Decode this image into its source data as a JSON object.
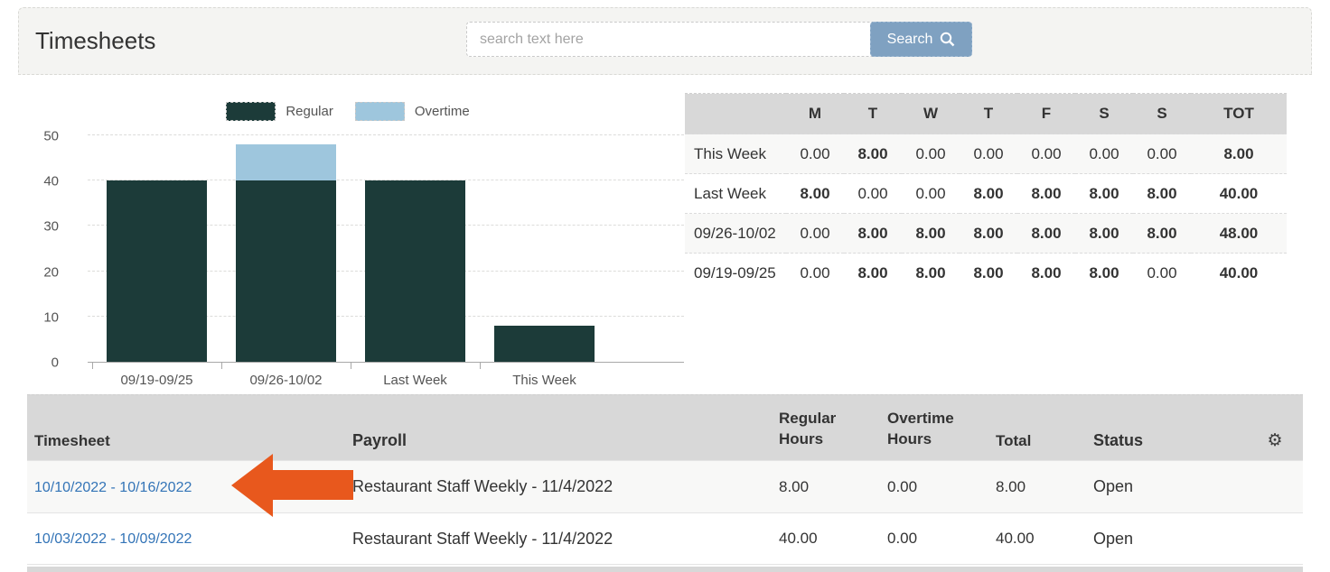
{
  "header": {
    "title": "Timesheets",
    "search": {
      "placeholder": "search text here",
      "button_label": "Search"
    }
  },
  "chart_data": {
    "type": "bar",
    "stacked": true,
    "categories": [
      "09/19-09/25",
      "09/26-10/02",
      "Last Week",
      "This Week"
    ],
    "series": [
      {
        "name": "Regular",
        "color": "#1c3b39",
        "values": [
          40,
          40,
          40,
          8
        ]
      },
      {
        "name": "Overtime",
        "color": "#9ec6dd",
        "values": [
          0,
          8,
          0,
          0
        ]
      }
    ],
    "ylim": [
      0,
      50
    ],
    "yticks": [
      0,
      10,
      20,
      30,
      40,
      50
    ],
    "legend_position": "top",
    "grid": true
  },
  "week_table": {
    "columns": [
      "",
      "M",
      "T",
      "W",
      "T",
      "F",
      "S",
      "S",
      "TOT"
    ],
    "rows": [
      {
        "label": "This Week",
        "values": [
          "0.00",
          "8.00",
          "0.00",
          "0.00",
          "0.00",
          "0.00",
          "0.00"
        ],
        "total": "8.00"
      },
      {
        "label": "Last Week",
        "values": [
          "8.00",
          "0.00",
          "0.00",
          "8.00",
          "8.00",
          "8.00",
          "8.00"
        ],
        "total": "40.00"
      },
      {
        "label": "09/26-10/02",
        "values": [
          "0.00",
          "8.00",
          "8.00",
          "8.00",
          "8.00",
          "8.00",
          "8.00"
        ],
        "total": "48.00"
      },
      {
        "label": "09/19-09/25",
        "values": [
          "0.00",
          "8.00",
          "8.00",
          "8.00",
          "8.00",
          "8.00",
          "0.00"
        ],
        "total": "40.00"
      }
    ]
  },
  "timesheet_table": {
    "col_timesheet": "Timesheet",
    "col_payroll": "Payroll",
    "col_regular": "Regular Hours",
    "col_overtime": "Overtime Hours",
    "col_total": "Total",
    "col_status": "Status",
    "gear_icon": "⚙",
    "rows": [
      {
        "timesheet": "10/10/2022 - 10/16/2022",
        "payroll": "Restaurant Staff Weekly - 11/4/2022",
        "regular_hours": "8.00",
        "overtime_hours": "0.00",
        "total": "8.00",
        "status": "Open"
      },
      {
        "timesheet": "10/03/2022 - 10/09/2022",
        "payroll": "Restaurant Staff Weekly - 11/4/2022",
        "regular_hours": "40.00",
        "overtime_hours": "0.00",
        "total": "40.00",
        "status": "Open"
      }
    ]
  },
  "annotation": {
    "arrow_direction": "left",
    "arrow_color": "#e8581d",
    "points_to": "10/10/2022 - 10/16/2022"
  },
  "colors": {
    "button_bg": "#7fa1c1",
    "link": "#3374b7",
    "table_header_bg": "#d8d8d8",
    "bar_regular": "#1c3b39",
    "bar_overtime": "#9ec6dd",
    "arrow": "#e8581d"
  }
}
